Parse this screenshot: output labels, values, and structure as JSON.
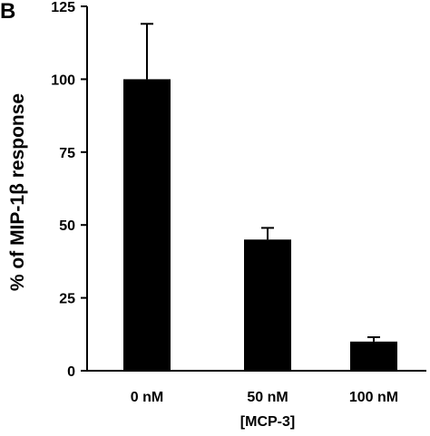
{
  "panel_label": "B",
  "chart_data": {
    "type": "bar",
    "categories": [
      "0 nM",
      "50 nM",
      "100 nM"
    ],
    "values": [
      100,
      45,
      10
    ],
    "error_upper": [
      119,
      49,
      11.5
    ],
    "xlabel": "[MCP-3]",
    "ylabel": "% of MIP-1β response",
    "ylim": [
      0,
      125
    ],
    "yticks": [
      0,
      25,
      50,
      75,
      100,
      125
    ],
    "ytick_labels": [
      "0",
      "25",
      "50",
      "75",
      "100",
      "125"
    ],
    "bar_color": "#000000",
    "grid": false,
    "legend": "none"
  }
}
